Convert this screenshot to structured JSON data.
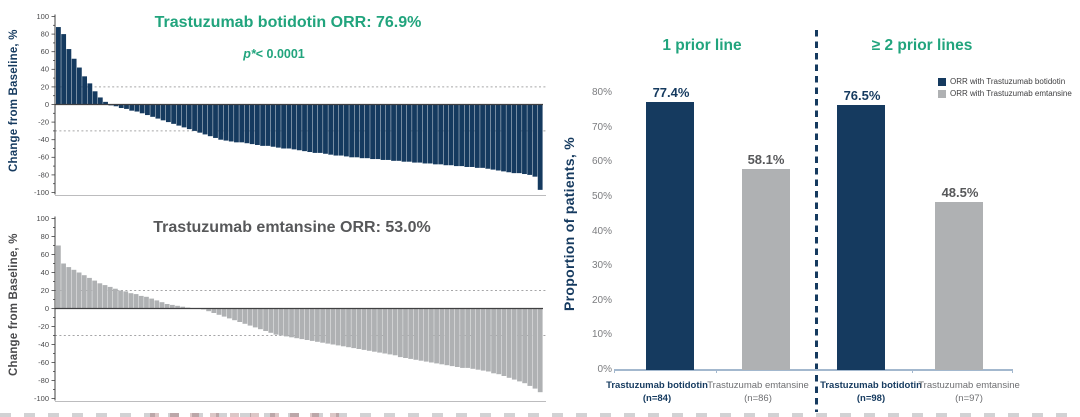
{
  "palette": {
    "navy": "#153A5F",
    "gray": "#AFB1B3",
    "green": "#21A47D",
    "title_gray": "#57585A",
    "axis": "#404042",
    "tick_text": "#4A4A4C",
    "pct_tick_text": "#7B7C7F",
    "reference_line": "#A6A6A8",
    "baseline_blue": "#A3B8CE",
    "xlabel_gray": "#6E6F72"
  },
  "chart_data": [
    {
      "type": "bar",
      "subtype": "waterfall",
      "title": "Trastuzumab botidotin ORR: 76.9%",
      "p_prefix": "p*",
      "p_rest": "< 0.0001",
      "ylabel": "Change from Baseline, %",
      "ylim": [
        -100,
        100
      ],
      "yticks": [
        100,
        80,
        60,
        40,
        20,
        0,
        -20,
        -40,
        -60,
        -80,
        -100
      ],
      "reference_lines": [
        20,
        -30
      ],
      "bar_color": "#153A5F",
      "values": [
        88,
        80,
        63,
        52,
        42,
        32,
        24,
        15,
        8,
        3,
        -1,
        -2,
        -4,
        -5,
        -7,
        -8,
        -10,
        -12,
        -14,
        -16,
        -18,
        -20,
        -22,
        -24,
        -26,
        -28,
        -30,
        -32,
        -34,
        -36,
        -38,
        -40,
        -41,
        -42,
        -43,
        -43,
        -44,
        -45,
        -46,
        -47,
        -47,
        -48,
        -49,
        -50,
        -50,
        -51,
        -52,
        -53,
        -54,
        -55,
        -55,
        -56,
        -57,
        -58,
        -58,
        -59,
        -60,
        -60,
        -61,
        -61,
        -62,
        -62,
        -63,
        -63,
        -64,
        -64,
        -65,
        -65,
        -66,
        -66,
        -67,
        -67,
        -68,
        -68,
        -69,
        -69,
        -70,
        -70,
        -71,
        -71,
        -72,
        -72,
        -73,
        -74,
        -75,
        -76,
        -77,
        -78,
        -78,
        -79,
        -80,
        -82,
        -97
      ]
    },
    {
      "type": "bar",
      "subtype": "waterfall",
      "title": "Trastuzumab emtansine ORR: 53.0%",
      "ylabel": "Change from Baseline, %",
      "ylim": [
        -100,
        100
      ],
      "yticks": [
        100,
        80,
        60,
        40,
        20,
        0,
        -20,
        -40,
        -60,
        -80,
        -100
      ],
      "reference_lines": [
        20,
        -30
      ],
      "bar_color": "#AFB1B3",
      "values": [
        70,
        50,
        46,
        43,
        40,
        37,
        34,
        31,
        28,
        26,
        24,
        22,
        20,
        19,
        17,
        16,
        14,
        13,
        11,
        9,
        7,
        5,
        4,
        3,
        2,
        1,
        0,
        0,
        -1,
        -3,
        -5,
        -7,
        -9,
        -11,
        -13,
        -15,
        -17,
        -19,
        -21,
        -23,
        -25,
        -27,
        -29,
        -30,
        -31,
        -32,
        -33,
        -34,
        -35,
        -36,
        -37,
        -38,
        -39,
        -40,
        -41,
        -42,
        -43,
        -44,
        -45,
        -46,
        -47,
        -48,
        -49,
        -50,
        -51,
        -52,
        -54,
        -55,
        -56,
        -57,
        -58,
        -59,
        -60,
        -61,
        -62,
        -63,
        -64,
        -65,
        -66,
        -66,
        -67,
        -68,
        -69,
        -70,
        -72,
        -73,
        -75,
        -77,
        -79,
        -81,
        -83,
        -86,
        -89,
        -93
      ]
    },
    {
      "type": "bar",
      "subtype": "grouped-column",
      "ylabel": "Proportion of patients, %",
      "ylim_pct": [
        0,
        80
      ],
      "ytick_labels": [
        "0%",
        "10%",
        "20%",
        "30%",
        "40%",
        "50%",
        "60%",
        "70%",
        "80%"
      ],
      "groups": [
        {
          "title": "1 prior line",
          "bars": [
            {
              "series": "botidotin",
              "value": 77.4,
              "value_label": "77.4%",
              "x_label": "Trastuzumab botidotin",
              "n_label": "(n=84)"
            },
            {
              "series": "emtansine",
              "value": 58.1,
              "value_label": "58.1%",
              "x_label": "Trastuzumab emtansine",
              "n_label": "(n=86)"
            }
          ]
        },
        {
          "title": "≥ 2 prior lines",
          "bars": [
            {
              "series": "botidotin",
              "value": 76.5,
              "value_label": "76.5%",
              "x_label": "Trastuzumab botidotin",
              "n_label": "(n=98)"
            },
            {
              "series": "emtansine",
              "value": 48.5,
              "value_label": "48.5%",
              "x_label": "Trastuzumab emtansine",
              "n_label": "(n=97)"
            }
          ]
        }
      ],
      "legend": [
        {
          "series": "botidotin",
          "label": "ORR with Trastuzumab botidotin"
        },
        {
          "series": "emtansine",
          "label": "ORR with Trastuzumab emtansine"
        }
      ]
    }
  ]
}
